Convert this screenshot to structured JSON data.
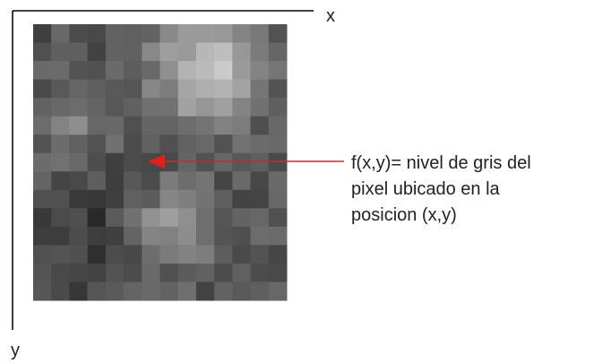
{
  "axes": {
    "x_label": "x",
    "y_label": "y"
  },
  "annotation": {
    "lines": [
      "f(x,y)= nivel de gris del",
      "pixel ubicado en la",
      "posicion (x,y)"
    ]
  }
}
